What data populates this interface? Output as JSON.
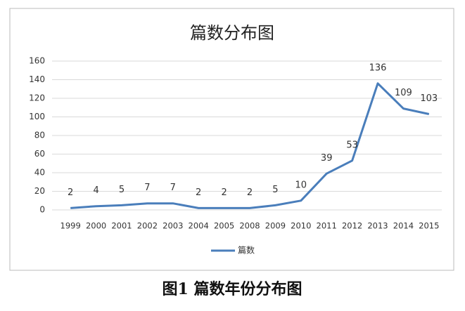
{
  "chart_data": {
    "type": "line",
    "title": "篇数分布图",
    "categories": [
      "1999",
      "2000",
      "2001",
      "2002",
      "2003",
      "2004",
      "2005",
      "2008",
      "2009",
      "2010",
      "2011",
      "2012",
      "2013",
      "2014",
      "2015"
    ],
    "series": [
      {
        "name": "篇数",
        "color": "#4a7ebb",
        "values": [
          2,
          4,
          5,
          7,
          7,
          2,
          2,
          2,
          5,
          10,
          39,
          53,
          136,
          109,
          103
        ]
      }
    ],
    "ylim": [
      0,
      160
    ],
    "yticks": [
      0,
      20,
      40,
      60,
      80,
      100,
      120,
      140,
      160
    ],
    "grid": true,
    "caption": "图1  篇数年份分布图"
  }
}
